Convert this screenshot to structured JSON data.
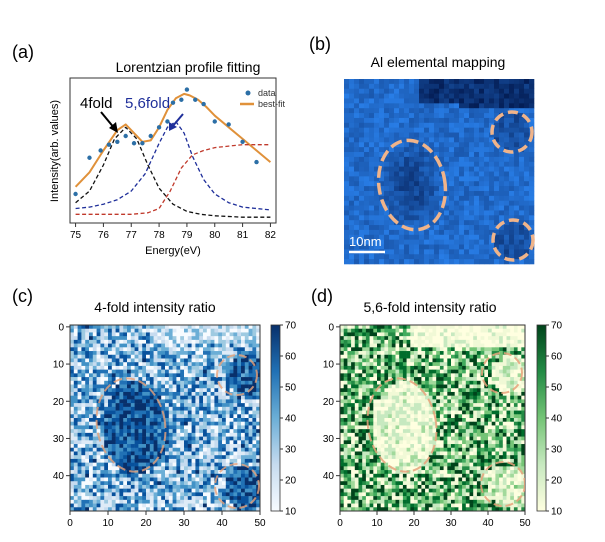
{
  "panels": {
    "a": {
      "label": "(a)",
      "title": "Lorentzian profile fitting"
    },
    "b": {
      "label": "(b)",
      "title": "Al elemental mapping",
      "scalebar": "10nm"
    },
    "c": {
      "label": "(c)",
      "title": "4-fold intensity ratio"
    },
    "d": {
      "label": "(d)",
      "title": "5,6-fold intensity ratio"
    }
  },
  "chart_data": [
    {
      "type": "line",
      "title": "Lorentzian profile fitting",
      "xlabel": "Energy(eV)",
      "ylabel": "Intensity(arb. values)",
      "xlim": [
        74.8,
        82.2
      ],
      "x_ticks": [
        "75",
        "76",
        "77",
        "78",
        "79",
        "80",
        "81",
        "82"
      ],
      "legend": {
        "position": "top-right",
        "entries": [
          "data",
          "best-fit"
        ]
      },
      "annotations": [
        {
          "text": "4fold",
          "color": "#000000"
        },
        {
          "text": "5,6fold",
          "color": "#1f2f9a"
        }
      ],
      "series": [
        {
          "name": "data",
          "style": "points",
          "color": "#2c6fa6",
          "x": [
            75.0,
            75.5,
            75.9,
            76.2,
            76.5,
            76.8,
            77.1,
            77.4,
            77.7,
            78.0,
            78.3,
            78.5,
            78.8,
            79.0,
            79.3,
            79.6,
            80.0,
            80.5,
            81.0,
            81.5
          ],
          "y": [
            0.2,
            0.45,
            0.5,
            0.54,
            0.56,
            0.6,
            0.55,
            0.55,
            0.6,
            0.66,
            0.7,
            0.83,
            0.85,
            0.92,
            0.85,
            0.82,
            0.7,
            0.68,
            0.56,
            0.42
          ]
        },
        {
          "name": "best-fit",
          "style": "solid",
          "color": "#e0913a",
          "x": [
            75.0,
            75.5,
            76.0,
            76.5,
            76.8,
            77.1,
            77.4,
            77.7,
            78.0,
            78.3,
            78.6,
            78.9,
            79.1,
            79.4,
            79.7,
            80.0,
            80.5,
            81.0,
            81.5,
            82.0
          ],
          "y": [
            0.25,
            0.35,
            0.5,
            0.64,
            0.68,
            0.62,
            0.56,
            0.57,
            0.66,
            0.78,
            0.86,
            0.89,
            0.88,
            0.85,
            0.8,
            0.74,
            0.66,
            0.58,
            0.5,
            0.42
          ]
        },
        {
          "style": "dashed",
          "color": "#111111",
          "x": [
            75.0,
            75.5,
            76.0,
            76.4,
            76.8,
            77.2,
            77.6,
            78.0,
            78.5,
            79.0,
            79.5,
            80.0,
            81.0,
            82.0
          ],
          "y": [
            0.14,
            0.22,
            0.4,
            0.58,
            0.66,
            0.58,
            0.4,
            0.24,
            0.13,
            0.08,
            0.06,
            0.05,
            0.04,
            0.04
          ]
        },
        {
          "style": "dashed",
          "color": "#1f2f9a",
          "x": [
            75.0,
            75.5,
            76.0,
            76.5,
            77.0,
            77.5,
            78.0,
            78.3,
            78.6,
            78.9,
            79.2,
            79.6,
            80.0,
            80.5,
            81.0,
            81.5,
            82.0
          ],
          "y": [
            0.1,
            0.11,
            0.13,
            0.16,
            0.22,
            0.34,
            0.55,
            0.66,
            0.7,
            0.62,
            0.46,
            0.3,
            0.2,
            0.14,
            0.11,
            0.1,
            0.09
          ]
        },
        {
          "style": "dashed",
          "color": "#c0392b",
          "x": [
            75.0,
            76.0,
            77.0,
            77.6,
            78.0,
            78.4,
            78.8,
            79.2,
            79.6,
            80.0,
            80.5,
            81.0,
            81.5,
            82.0
          ],
          "y": [
            0.06,
            0.06,
            0.06,
            0.07,
            0.1,
            0.22,
            0.38,
            0.47,
            0.5,
            0.52,
            0.53,
            0.54,
            0.54,
            0.54
          ]
        }
      ]
    },
    {
      "type": "heatmap",
      "title": "4-fold intensity ratio",
      "colormap": "Blues",
      "x_ticks": [
        "0",
        "10",
        "20",
        "30",
        "40",
        "50"
      ],
      "y_ticks": [
        "0",
        "10",
        "20",
        "30",
        "40"
      ],
      "colorbar_ticks": [
        "10",
        "20",
        "30",
        "40",
        "50",
        "60",
        "70"
      ],
      "colorbar_range": [
        10,
        70
      ],
      "grid_size": [
        50,
        50
      ]
    },
    {
      "type": "heatmap",
      "title": "5,6-fold intensity ratio",
      "colormap": "Greens",
      "x_ticks": [
        "0",
        "10",
        "20",
        "30",
        "40",
        "50"
      ],
      "y_ticks": [
        "0",
        "10",
        "20",
        "30",
        "40"
      ],
      "colorbar_ticks": [
        "10",
        "20",
        "30",
        "40",
        "50",
        "60",
        "70"
      ],
      "colorbar_range": [
        10,
        70
      ],
      "grid_size": [
        50,
        50
      ]
    }
  ]
}
